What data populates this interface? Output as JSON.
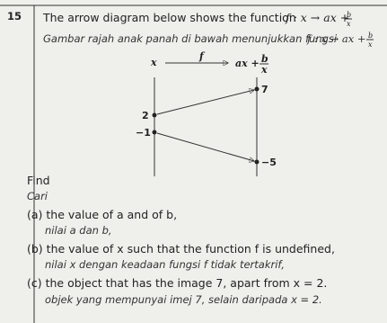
{
  "question": {
    "number": "15",
    "intro": {
      "en": "The arrow diagram below shows the function",
      "ms": "Gambar rajah anak panah di bawah menunjukkan fungsi"
    },
    "function": {
      "lhs": "f : x → ax +",
      "numerator": "b",
      "denominator": "x"
    },
    "diagram": {
      "domain_label": "x",
      "map_label": "f",
      "codomain_label": {
        "lhs": "ax +",
        "numerator": "b",
        "denominator": "x"
      },
      "domain": [
        "2",
        "−1"
      ],
      "codomain": [
        "7",
        "−5"
      ]
    },
    "find": {
      "en": "Find",
      "ms": "Cari"
    },
    "parts": [
      {
        "en": "(a) the value of a and of b,",
        "ms": "nilai a dan b,"
      },
      {
        "en": "(b) the value of x such that the function f is undefined,",
        "ms": "nilai x dengan keadaan fungsi f tidak tertakrif,"
      },
      {
        "en": "(c) the object that has the image 7, apart from x = 2.",
        "ms": "objek yang mempunyai imej 7, selain daripada x = 2."
      }
    ]
  }
}
